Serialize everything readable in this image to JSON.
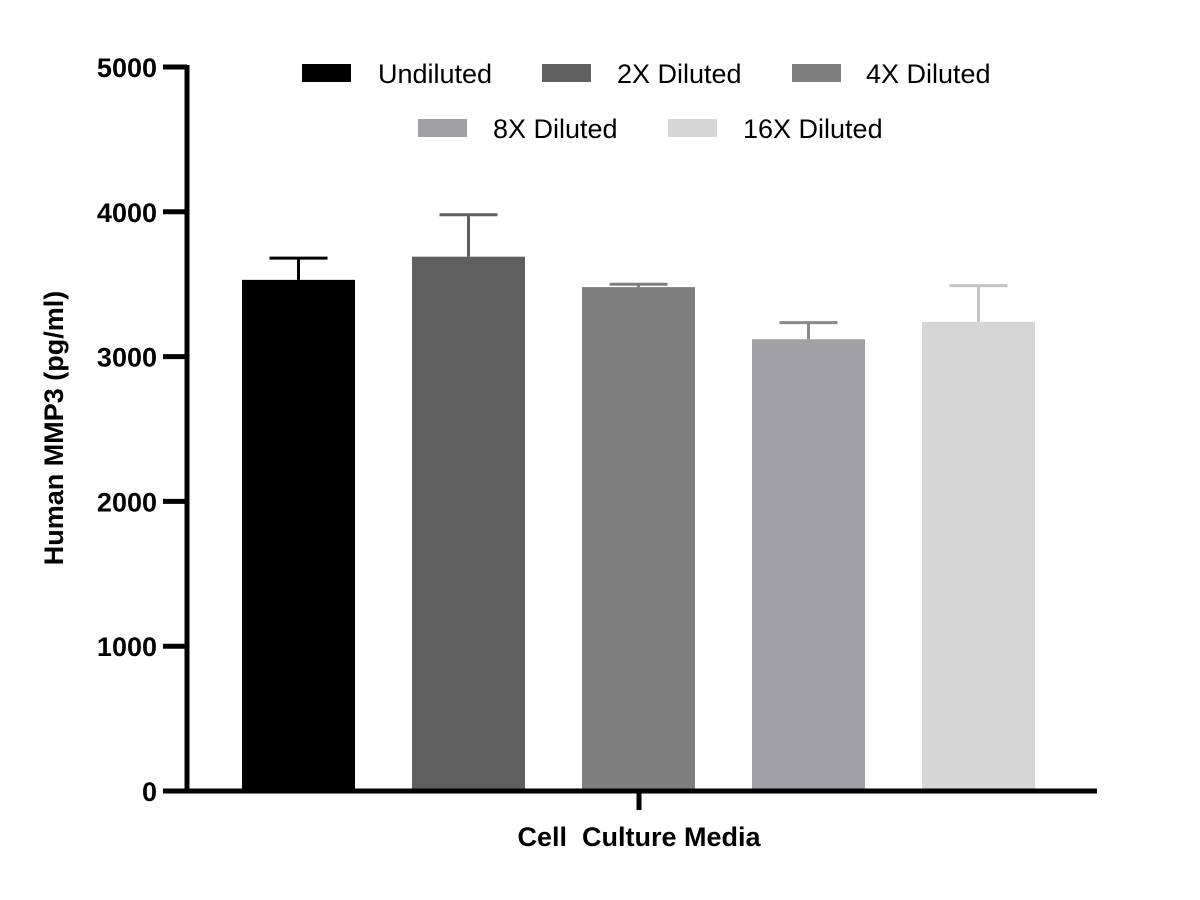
{
  "chart_data": {
    "type": "bar",
    "title": "",
    "xlabel": "Cell  Culture Media",
    "ylabel": "Human MMP3 (pg/ml)",
    "ylim": [
      0,
      5000
    ],
    "yticks": [
      0,
      1000,
      2000,
      3000,
      4000,
      5000
    ],
    "yticks_labels": [
      "0",
      "1000",
      "2000",
      "3000",
      "4000",
      "5000"
    ],
    "grid": false,
    "legend_position": "top",
    "categories": [
      "Cell  Culture Media"
    ],
    "series": [
      {
        "name": "Undiluted",
        "values": [
          3530
        ],
        "error": [
          150
        ],
        "color": "#000000",
        "error_color": "#000000"
      },
      {
        "name": "2X Diluted",
        "values": [
          3690
        ],
        "error": [
          290
        ],
        "color": "#5f5f5f",
        "error_color": "#5f5f5f"
      },
      {
        "name": "4X Diluted",
        "values": [
          3480
        ],
        "error": [
          20
        ],
        "color": "#7f7f7f",
        "error_color": "#7f7f7f"
      },
      {
        "name": "8X Diluted",
        "values": [
          3120
        ],
        "error": [
          115
        ],
        "color": "#a1a0a5",
        "error_color": "#8a898e"
      },
      {
        "name": "16X Diluted",
        "values": [
          3240
        ],
        "error": [
          250
        ],
        "color": "#d6d6d6",
        "error_color": "#c4c4c4"
      }
    ]
  }
}
